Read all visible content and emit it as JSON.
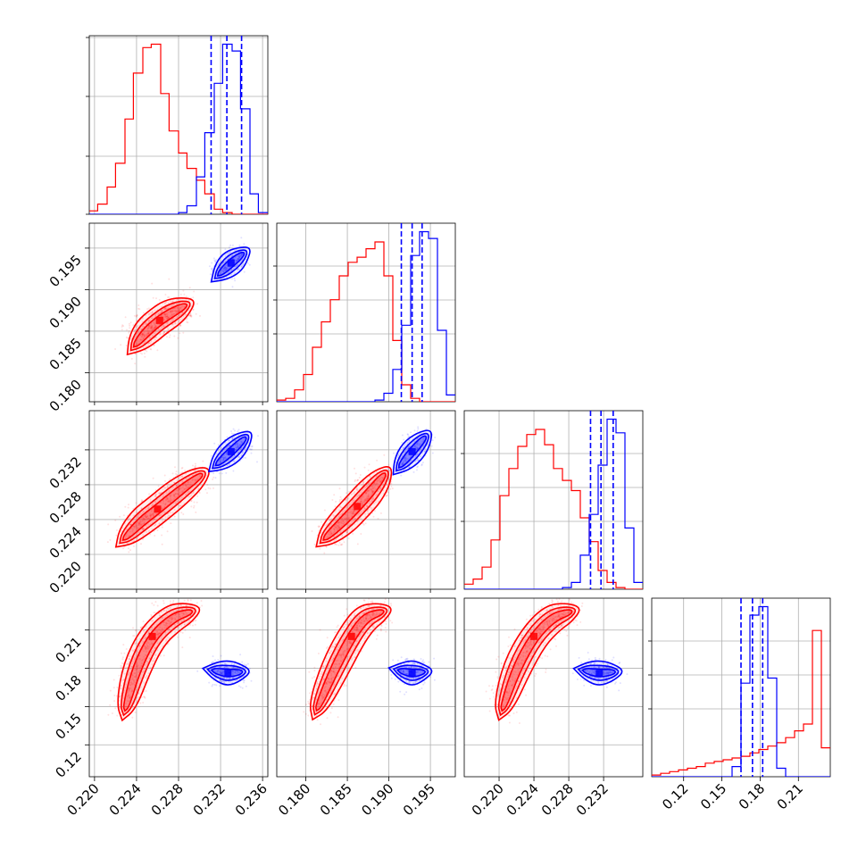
{
  "chart_data": {
    "type": "corner",
    "grid": true,
    "legend": "none",
    "colors": {
      "red": "#ff0000",
      "blue": "#0000ff"
    },
    "params": [
      {
        "range": [
          0.2195,
          0.2365
        ],
        "ticks": [
          "0.220",
          "0.224",
          "0.228",
          "0.232",
          "0.236"
        ],
        "tick_values": [
          0.22,
          0.224,
          0.228,
          0.232,
          0.236
        ]
      },
      {
        "range": [
          0.1765,
          0.198
        ],
        "ticks": [
          "0.180",
          "0.185",
          "0.190",
          "0.195"
        ],
        "tick_values": [
          0.18,
          0.185,
          0.19,
          0.195
        ]
      },
      {
        "range": [
          0.216,
          0.2365
        ],
        "ticks": [
          "0.220",
          "0.224",
          "0.228",
          "0.232"
        ],
        "tick_values": [
          0.22,
          0.224,
          0.228,
          0.232
        ]
      },
      {
        "range": [
          0.095,
          0.235
        ],
        "ticks": [
          "0.12",
          "0.15",
          "0.18",
          "0.21"
        ],
        "tick_values": [
          0.12,
          0.15,
          0.18,
          0.21
        ]
      }
    ],
    "histograms": [
      {
        "red": {
          "edges": [
            0.2195,
            0.2203,
            0.2212,
            0.222,
            0.2229,
            0.2237,
            0.2246,
            0.2254,
            0.2263,
            0.2271,
            0.228,
            0.2288,
            0.2297,
            0.2305,
            0.2314,
            0.2322,
            0.2331,
            0.2339,
            0.2348,
            0.2356,
            0.2365
          ],
          "counts": [
            0.02,
            0.06,
            0.16,
            0.3,
            0.56,
            0.83,
            0.98,
            1.0,
            0.71,
            0.49,
            0.36,
            0.27,
            0.2,
            0.12,
            0.03,
            0.01,
            0,
            0,
            0,
            0
          ]
        },
        "blue": {
          "edges": [
            0.2195,
            0.2203,
            0.2212,
            0.222,
            0.2229,
            0.2237,
            0.2246,
            0.2254,
            0.2263,
            0.2271,
            0.228,
            0.2288,
            0.2297,
            0.2305,
            0.2314,
            0.2322,
            0.2331,
            0.2339,
            0.2348,
            0.2356,
            0.2365
          ],
          "counts": [
            0,
            0,
            0,
            0,
            0,
            0,
            0,
            0,
            0,
            0,
            0.01,
            0.05,
            0.22,
            0.48,
            0.77,
            1.0,
            0.96,
            0.62,
            0.12,
            0.01
          ]
        },
        "quantiles": [
          0.2311,
          0.2326,
          0.234
        ]
      },
      {
        "red": {
          "edges": [
            0.1765,
            0.17758,
            0.17865,
            0.17973,
            0.1808,
            0.18188,
            0.18295,
            0.18403,
            0.1851,
            0.18618,
            0.18725,
            0.18833,
            0.1894,
            0.19048,
            0.19155,
            0.19263,
            0.1937,
            0.19478,
            0.19585,
            0.19693,
            0.198
          ],
          "counts": [
            0.01,
            0.02,
            0.07,
            0.16,
            0.32,
            0.47,
            0.6,
            0.74,
            0.82,
            0.85,
            0.9,
            0.94,
            0.74,
            0.36,
            0.1,
            0.02,
            0.0,
            0,
            0,
            0
          ]
        },
        "blue": {
          "edges": [
            0.1765,
            0.17758,
            0.17865,
            0.17973,
            0.1808,
            0.18188,
            0.18295,
            0.18403,
            0.1851,
            0.18618,
            0.18725,
            0.18833,
            0.1894,
            0.19048,
            0.19155,
            0.19263,
            0.1937,
            0.19478,
            0.19585,
            0.19693,
            0.198
          ],
          "counts": [
            0,
            0,
            0,
            0,
            0,
            0,
            0,
            0,
            0,
            0,
            0,
            0.01,
            0.05,
            0.19,
            0.45,
            0.86,
            1.0,
            0.96,
            0.42,
            0.04
          ]
        },
        "quantiles": [
          0.1915,
          0.1928,
          0.194
        ]
      },
      {
        "red": {
          "edges": [
            0.216,
            0.21703,
            0.21805,
            0.21908,
            0.2201,
            0.22113,
            0.22215,
            0.22318,
            0.2242,
            0.22523,
            0.22625,
            0.22728,
            0.2283,
            0.22933,
            0.23035,
            0.23138,
            0.2324,
            0.23343,
            0.23445,
            0.23548,
            0.2365
          ],
          "counts": [
            0.03,
            0.06,
            0.13,
            0.29,
            0.55,
            0.71,
            0.84,
            0.91,
            0.94,
            0.85,
            0.71,
            0.64,
            0.58,
            0.42,
            0.28,
            0.11,
            0.04,
            0.01,
            0,
            0
          ]
        },
        "blue": {
          "edges": [
            0.216,
            0.21703,
            0.21805,
            0.21908,
            0.2201,
            0.22113,
            0.22215,
            0.22318,
            0.2242,
            0.22523,
            0.22625,
            0.22728,
            0.2283,
            0.22933,
            0.23035,
            0.23138,
            0.2324,
            0.23343,
            0.23445,
            0.23548,
            0.2365
          ],
          "counts": [
            0,
            0,
            0,
            0,
            0,
            0,
            0,
            0,
            0,
            0,
            0,
            0.01,
            0.04,
            0.2,
            0.44,
            0.73,
            1.0,
            0.92,
            0.36,
            0.04
          ]
        },
        "quantiles": [
          0.2305,
          0.2317,
          0.2331
        ]
      },
      {
        "red": {
          "edges": [
            0.095,
            0.102,
            0.109,
            0.116,
            0.123,
            0.13,
            0.137,
            0.144,
            0.151,
            0.158,
            0.165,
            0.172,
            0.179,
            0.186,
            0.193,
            0.2,
            0.207,
            0.214,
            0.221,
            0.228,
            0.235
          ],
          "counts": [
            0.01,
            0.02,
            0.03,
            0.04,
            0.05,
            0.06,
            0.08,
            0.09,
            0.1,
            0.11,
            0.12,
            0.14,
            0.16,
            0.18,
            0.2,
            0.23,
            0.27,
            0.31,
            0.86,
            0.17
          ]
        },
        "blue": {
          "edges": [
            0.095,
            0.102,
            0.109,
            0.116,
            0.123,
            0.13,
            0.137,
            0.144,
            0.151,
            0.158,
            0.165,
            0.172,
            0.179,
            0.186,
            0.193,
            0.2,
            0.207,
            0.214,
            0.221,
            0.228,
            0.235
          ],
          "counts": [
            0,
            0,
            0,
            0,
            0,
            0,
            0,
            0,
            0,
            0.06,
            0.55,
            0.95,
            1.0,
            0.58,
            0.05,
            0,
            0,
            0,
            0,
            0
          ]
        },
        "quantiles": [
          0.165,
          0.174,
          0.182
        ]
      }
    ],
    "pairs": [
      {
        "x": 0,
        "y": 1,
        "red": [
          {
            "x": 0.224,
            "y": 0.1835
          },
          {
            "x": 0.225,
            "y": 0.185
          },
          {
            "x": 0.2262,
            "y": 0.1863
          },
          {
            "x": 0.2273,
            "y": 0.1872
          },
          {
            "x": 0.2285,
            "y": 0.188
          }
        ],
        "blue": [
          {
            "x": 0.232,
            "y": 0.192
          },
          {
            "x": 0.233,
            "y": 0.1932
          },
          {
            "x": 0.234,
            "y": 0.1942
          }
        ]
      },
      {
        "x": 0,
        "y": 2,
        "red": [
          {
            "x": 0.223,
            "y": 0.222
          },
          {
            "x": 0.2245,
            "y": 0.2238
          },
          {
            "x": 0.226,
            "y": 0.2252
          },
          {
            "x": 0.228,
            "y": 0.2272
          },
          {
            "x": 0.23,
            "y": 0.229
          }
        ],
        "blue": [
          {
            "x": 0.2318,
            "y": 0.2305
          },
          {
            "x": 0.233,
            "y": 0.2318
          },
          {
            "x": 0.2342,
            "y": 0.2332
          }
        ]
      },
      {
        "x": 1,
        "y": 2,
        "red": [
          {
            "x": 0.1825,
            "y": 0.222
          },
          {
            "x": 0.1845,
            "y": 0.2238
          },
          {
            "x": 0.1862,
            "y": 0.2255
          },
          {
            "x": 0.1878,
            "y": 0.2272
          },
          {
            "x": 0.1893,
            "y": 0.229
          }
        ],
        "blue": [
          {
            "x": 0.1915,
            "y": 0.2303
          },
          {
            "x": 0.1928,
            "y": 0.2318
          },
          {
            "x": 0.1942,
            "y": 0.2333
          }
        ]
      },
      {
        "x": 0,
        "y": 3,
        "red": [
          {
            "x": 0.223,
            "y": 0.15
          },
          {
            "x": 0.224,
            "y": 0.18
          },
          {
            "x": 0.2255,
            "y": 0.205
          },
          {
            "x": 0.2275,
            "y": 0.22
          },
          {
            "x": 0.229,
            "y": 0.224
          }
        ],
        "blue": [
          {
            "x": 0.2315,
            "y": 0.178
          },
          {
            "x": 0.2327,
            "y": 0.176
          },
          {
            "x": 0.2338,
            "y": 0.177
          }
        ]
      },
      {
        "x": 1,
        "y": 3,
        "red": [
          {
            "x": 0.1815,
            "y": 0.15
          },
          {
            "x": 0.1835,
            "y": 0.18
          },
          {
            "x": 0.1855,
            "y": 0.205
          },
          {
            "x": 0.1872,
            "y": 0.22
          },
          {
            "x": 0.189,
            "y": 0.224
          }
        ],
        "blue": [
          {
            "x": 0.1915,
            "y": 0.178
          },
          {
            "x": 0.1928,
            "y": 0.176
          },
          {
            "x": 0.194,
            "y": 0.177
          }
        ]
      },
      {
        "x": 2,
        "y": 3,
        "red": [
          {
            "x": 0.2205,
            "y": 0.15
          },
          {
            "x": 0.222,
            "y": 0.18
          },
          {
            "x": 0.224,
            "y": 0.205
          },
          {
            "x": 0.2262,
            "y": 0.22
          },
          {
            "x": 0.228,
            "y": 0.224
          }
        ],
        "blue": [
          {
            "x": 0.23,
            "y": 0.178
          },
          {
            "x": 0.2315,
            "y": 0.176
          },
          {
            "x": 0.233,
            "y": 0.177
          }
        ]
      }
    ]
  }
}
